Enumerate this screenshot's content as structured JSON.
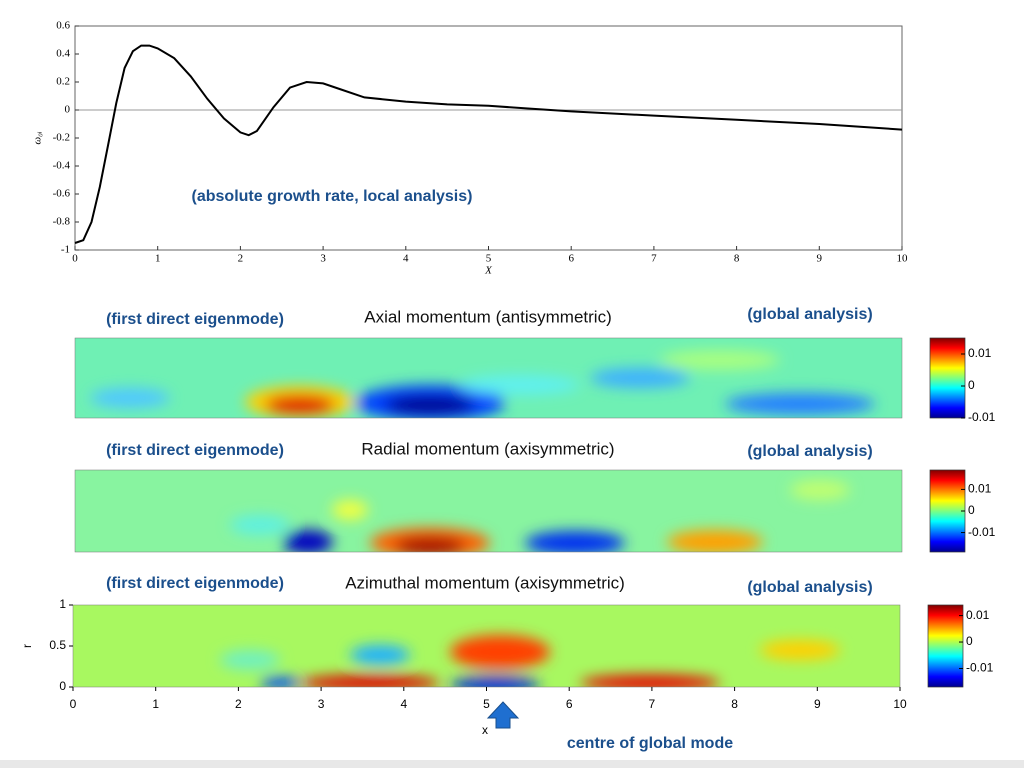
{
  "chart_data": [
    {
      "type": "line",
      "xlabel": "X",
      "ylabel": "ω₀ᵢ",
      "annotation": "(absolute growth rate, local analysis)",
      "x": [
        0,
        0.1,
        0.2,
        0.3,
        0.4,
        0.5,
        0.6,
        0.7,
        0.8,
        0.9,
        1.0,
        1.2,
        1.4,
        1.6,
        1.8,
        2.0,
        2.1,
        2.2,
        2.4,
        2.6,
        2.8,
        3.0,
        3.2,
        3.5,
        4.0,
        4.5,
        5.0,
        5.5,
        6.0,
        7.0,
        8.0,
        9.0,
        10.0
      ],
      "values": [
        -0.95,
        -0.93,
        -0.8,
        -0.55,
        -0.25,
        0.05,
        0.3,
        0.42,
        0.46,
        0.46,
        0.44,
        0.37,
        0.24,
        0.08,
        -0.06,
        -0.16,
        -0.18,
        -0.15,
        0.02,
        0.16,
        0.2,
        0.19,
        0.15,
        0.09,
        0.06,
        0.04,
        0.03,
        0.01,
        -0.01,
        -0.04,
        -0.07,
        -0.1,
        -0.14
      ],
      "color": "#000000",
      "xlim": [
        0,
        10
      ],
      "xticks": [
        0,
        1,
        2,
        3,
        4,
        5,
        6,
        7,
        8,
        9,
        10
      ],
      "ylim": [
        -1,
        0.6
      ],
      "yticks": [
        0.6,
        0.4,
        0.2,
        0,
        -0.2,
        -0.4,
        -0.6,
        -0.8,
        -1
      ]
    },
    {
      "type": "heatmap",
      "title": "Axial momentum (antisymmetric)",
      "annotations": [
        "(first direct eigenmode)",
        "(global analysis)"
      ],
      "clim": [
        -0.01,
        0.015
      ],
      "cticks": [
        0.01,
        0,
        -0.01
      ]
    },
    {
      "type": "heatmap",
      "title": "Radial momentum (axisymmetric)",
      "annotations": [
        "(first direct eigenmode)",
        "(global analysis)"
      ],
      "clim": [
        -0.019,
        0.019
      ],
      "cticks": [
        0.01,
        0,
        -0.01
      ]
    },
    {
      "type": "heatmap",
      "title": "Azimuthal momentum (axisymmetric)",
      "annotations": [
        "(first direct eigenmode)",
        "(global analysis)",
        "centre of global mode"
      ],
      "clim": [
        -0.017,
        0.014
      ],
      "cticks": [
        0.01,
        0,
        -0.01
      ],
      "xlabel": "x",
      "ylabel": "r",
      "xlim": [
        0,
        10
      ],
      "xticks": [
        0,
        1,
        2,
        3,
        4,
        5,
        6,
        7,
        8,
        9,
        10
      ],
      "ylim": [
        0,
        1
      ],
      "yticks": [
        0,
        0.5,
        1
      ]
    }
  ]
}
